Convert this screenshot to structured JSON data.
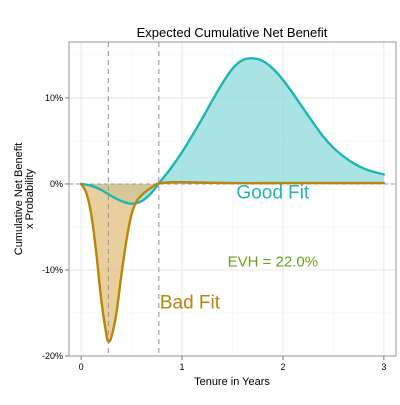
{
  "chart_data": {
    "type": "area",
    "title": "Expected Cumulative Net Benefit",
    "xlabel": "Tenure in Years",
    "ylabel": [
      "Cumulative Net Benefit",
      "x Probability"
    ],
    "xlim": [
      -0.12,
      3.12
    ],
    "ylim": [
      -0.2,
      0.165
    ],
    "xticks": [
      0,
      1,
      2,
      3
    ],
    "xtick_labels": [
      "0",
      "1",
      "2",
      "3"
    ],
    "yticks": [
      -0.2,
      -0.1,
      0,
      0.1
    ],
    "ytick_labels": [
      "-20%",
      "-10%",
      "0%",
      "10%"
    ],
    "grid": true,
    "reference_lines": {
      "vertical": [
        0.27,
        0.77
      ],
      "horizontal": [
        0
      ]
    },
    "series": [
      {
        "name": "Good Fit",
        "color": "#1EB5B5",
        "fill": "#8ED9DA",
        "x": [
          0,
          0.1,
          0.2,
          0.3,
          0.4,
          0.5,
          0.6,
          0.7,
          0.8,
          0.9,
          1.0,
          1.1,
          1.2,
          1.3,
          1.4,
          1.5,
          1.6,
          1.7,
          1.8,
          1.9,
          2.0,
          2.1,
          2.2,
          2.3,
          2.4,
          2.5,
          2.6,
          2.7,
          2.8,
          2.9,
          3.0
        ],
        "y": [
          0,
          -0.002,
          -0.007,
          -0.014,
          -0.02,
          -0.023,
          -0.02,
          -0.01,
          0.005,
          0.02,
          0.037,
          0.056,
          0.076,
          0.097,
          0.117,
          0.134,
          0.144,
          0.146,
          0.143,
          0.134,
          0.121,
          0.105,
          0.088,
          0.071,
          0.055,
          0.042,
          0.032,
          0.024,
          0.018,
          0.014,
          0.011
        ]
      },
      {
        "name": "Bad Fit",
        "color": "#B8860B",
        "fill": "#E2BF7C",
        "x": [
          0,
          0.05,
          0.1,
          0.15,
          0.2,
          0.25,
          0.27,
          0.3,
          0.35,
          0.4,
          0.45,
          0.5,
          0.55,
          0.6,
          0.65,
          0.7,
          0.75,
          0.8,
          0.9,
          1.0,
          1.5,
          2.0,
          2.5,
          3.0
        ],
        "y": [
          0,
          -0.01,
          -0.035,
          -0.08,
          -0.135,
          -0.175,
          -0.183,
          -0.178,
          -0.15,
          -0.105,
          -0.065,
          -0.035,
          -0.02,
          -0.013,
          -0.008,
          -0.004,
          0,
          0.001,
          0.002,
          0.002,
          0.001,
          0.001,
          0.001,
          0.001
        ]
      }
    ],
    "annotations": [
      {
        "text": "Good Fit",
        "x": 1.9,
        "y": -0.017,
        "color": "#1EB5B5"
      },
      {
        "text": "Bad Fit",
        "x": 0.78,
        "y": -0.145,
        "color": "#B8860B"
      },
      {
        "text": "EVH = 22.0%",
        "x": 1.9,
        "y": -0.096,
        "color": "#6B9E1A"
      }
    ]
  }
}
